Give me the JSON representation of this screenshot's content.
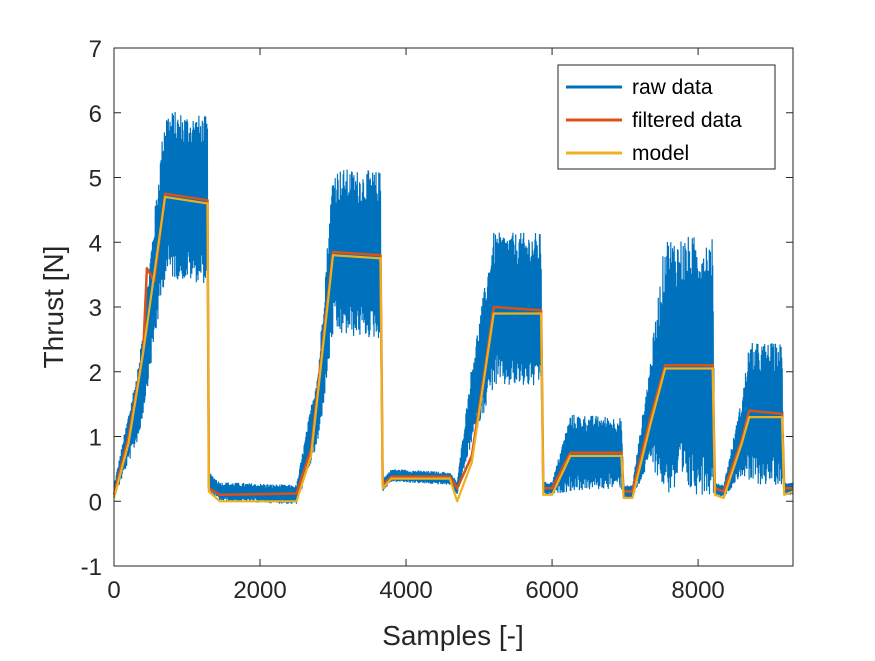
{
  "chart_data": {
    "type": "line",
    "xlabel": "Samples [-]",
    "ylabel": "Thrust [N]",
    "xlim": [
      0,
      9300
    ],
    "ylim": [
      -1,
      7
    ],
    "xticks": [
      0,
      2000,
      4000,
      6000,
      8000
    ],
    "xtick_labels": [
      "0",
      "2000",
      "4000",
      "6000",
      "8000"
    ],
    "yticks": [
      -1,
      0,
      1,
      2,
      3,
      4,
      5,
      6,
      7
    ],
    "ytick_labels": [
      "-1",
      "0",
      "1",
      "2",
      "3",
      "4",
      "5",
      "6",
      "7"
    ],
    "grid": false,
    "legend_position": "top-right",
    "series": [
      {
        "name": "raw data",
        "color": "#0072BD",
        "description_points": {
          "x": [
            0,
            350,
            700,
            1280,
            1300,
            1450,
            2500,
            2800,
            3000,
            3650,
            3680,
            3800,
            4600,
            4700,
            4900,
            5200,
            5850,
            5880,
            6000,
            6250,
            6950,
            6980,
            7100,
            7350,
            7550,
            8200,
            8230,
            8350,
            8600,
            8700,
            9150,
            9180,
            9300
          ],
          "center": [
            0.15,
            1.6,
            4.75,
            4.65,
            0.3,
            0.15,
            0.1,
            1.5,
            3.85,
            3.8,
            0.25,
            0.4,
            0.35,
            0.2,
            1.5,
            2.95,
            2.95,
            0.2,
            0.2,
            0.75,
            0.75,
            0.15,
            0.15,
            1.4,
            2.1,
            2.1,
            0.2,
            0.15,
            1.0,
            1.35,
            1.35,
            0.2,
            0.2
          ],
          "amplitude": [
            0.1,
            0.6,
            1.3,
            1.3,
            0.15,
            0.15,
            0.15,
            0.6,
            1.3,
            1.3,
            0.1,
            0.1,
            0.1,
            0.1,
            0.6,
            1.2,
            1.2,
            0.1,
            0.1,
            0.6,
            0.55,
            0.1,
            0.1,
            0.8,
            2.0,
            2.0,
            0.1,
            0.1,
            0.6,
            1.1,
            1.1,
            0.1,
            0.1
          ]
        }
      },
      {
        "name": "filtered data",
        "color": "#D95319",
        "x": [
          0,
          200,
          400,
          450,
          550,
          700,
          1280,
          1300,
          1450,
          2500,
          2700,
          3000,
          3650,
          3680,
          3800,
          4600,
          4700,
          4900,
          5100,
          5200,
          5850,
          5880,
          6000,
          6250,
          6950,
          6980,
          7100,
          7350,
          7550,
          8200,
          8230,
          8350,
          8600,
          8700,
          9150,
          9180,
          9300
        ],
        "y": [
          0.1,
          1.0,
          2.3,
          3.6,
          3.4,
          4.75,
          4.65,
          0.2,
          0.1,
          0.12,
          0.8,
          3.85,
          3.8,
          0.25,
          0.38,
          0.38,
          0.2,
          0.7,
          2.2,
          3.0,
          2.95,
          0.2,
          0.2,
          0.75,
          0.75,
          0.15,
          0.15,
          1.3,
          2.1,
          2.1,
          0.2,
          0.15,
          0.95,
          1.4,
          1.35,
          0.2,
          0.2
        ]
      },
      {
        "name": "model",
        "color": "#EDB120",
        "x": [
          0,
          200,
          400,
          700,
          1280,
          1300,
          1450,
          2500,
          2700,
          3000,
          3650,
          3680,
          3800,
          4600,
          4700,
          4900,
          5200,
          5850,
          5880,
          6000,
          6250,
          6950,
          6980,
          7100,
          7350,
          7550,
          8200,
          8230,
          8350,
          8600,
          8700,
          9150,
          9180,
          9300
        ],
        "y": [
          0.05,
          0.9,
          2.3,
          4.7,
          4.6,
          0.15,
          0.0,
          0.0,
          0.7,
          3.8,
          3.75,
          0.2,
          0.35,
          0.35,
          0.0,
          0.6,
          2.9,
          2.9,
          0.1,
          0.1,
          0.7,
          0.7,
          0.05,
          0.05,
          1.2,
          2.05,
          2.05,
          0.1,
          0.05,
          0.9,
          1.3,
          1.3,
          0.1,
          0.15
        ]
      }
    ]
  }
}
